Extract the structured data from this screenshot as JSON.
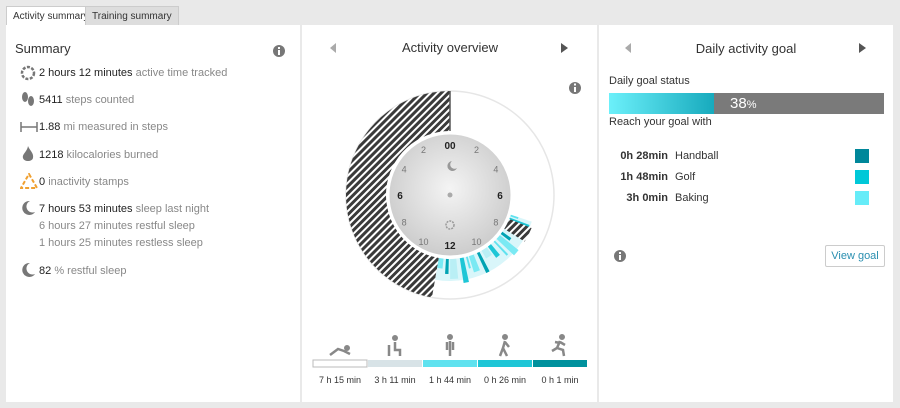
{
  "tabs": [
    "Activity summary",
    "Training summary"
  ],
  "summary": {
    "title": "Summary",
    "rows": [
      {
        "value": "2 hours 12 minutes",
        "label": "active time tracked"
      },
      {
        "value": "5411",
        "label": "steps counted"
      },
      {
        "value": "1.88",
        "label": "mi measured in steps"
      },
      {
        "value": "1218",
        "label": "kilocalories burned"
      },
      {
        "value": "0",
        "label": "inactivity stamps"
      },
      {
        "value": "7 hours 53 minutes",
        "label": "sleep last night",
        "details": [
          "6 hours 27 minutes restful sleep",
          "1 hours 25 minutes restless sleep"
        ]
      },
      {
        "value": "82",
        "label": "% restful sleep"
      }
    ]
  },
  "overview": {
    "title": "Activity overview",
    "clock_labels": [
      "00",
      "2",
      "4",
      "6",
      "8",
      "10",
      "12",
      "10",
      "8",
      "6",
      "4",
      "2"
    ],
    "legend": [
      {
        "duration": "7 h 15 min",
        "color": "#ffffff"
      },
      {
        "duration": "3 h 11 min",
        "color": "#d8e3e7"
      },
      {
        "duration": "1 h 44 min",
        "color": "#5fe2ef"
      },
      {
        "duration": "0 h 26 min",
        "color": "#1ec6d6"
      },
      {
        "duration": "0 h 1 min",
        "color": "#00919d"
      }
    ]
  },
  "goal": {
    "title": "Daily activity goal",
    "status_label": "Daily goal status",
    "percent": 38,
    "unit": "%",
    "reach_label": "Reach your goal with",
    "options": [
      {
        "time": "0h 28min",
        "activity": "Handball",
        "color": "#00879a"
      },
      {
        "time": "1h 48min",
        "activity": "Golf",
        "color": "#00c8d8"
      },
      {
        "time": "3h 0min",
        "activity": "Baking",
        "color": "#66ecf8"
      }
    ],
    "button": "View goal"
  }
}
